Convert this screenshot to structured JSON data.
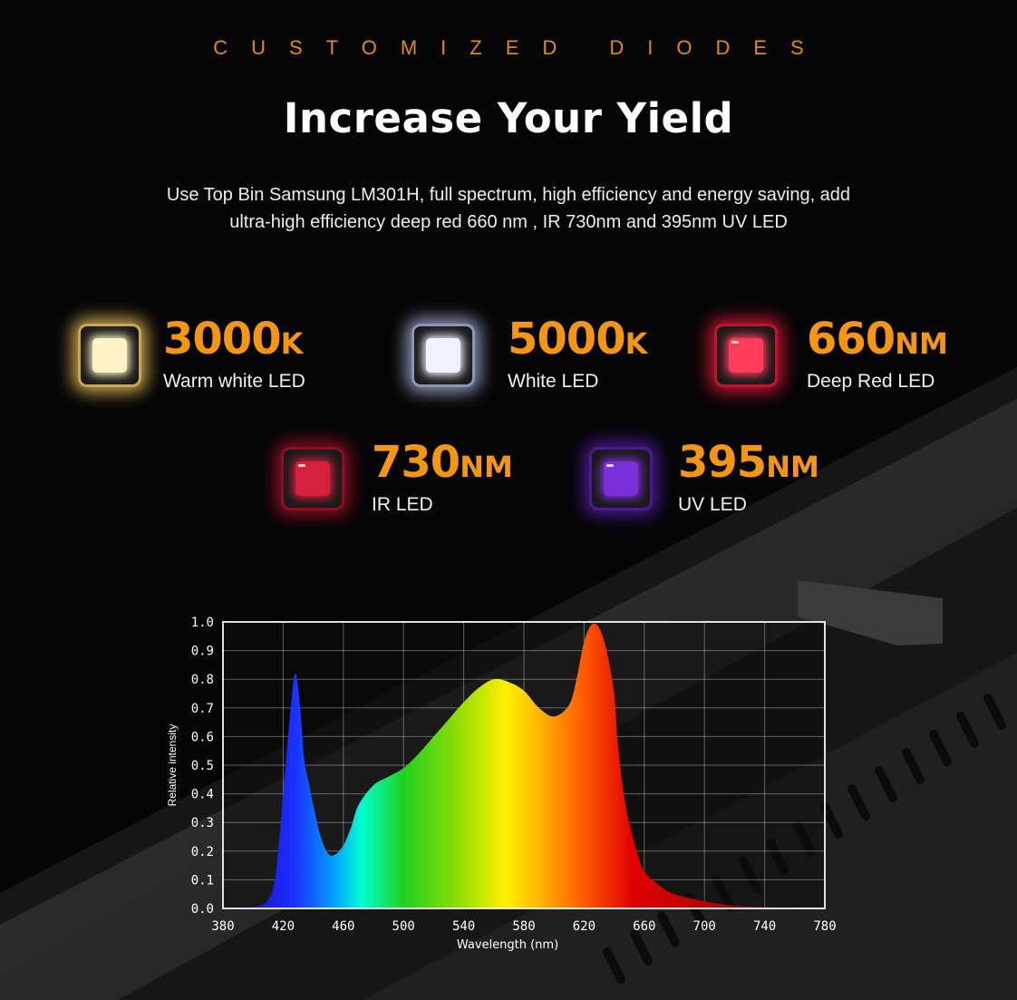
{
  "header": {
    "eyebrow": "CUSTOMIZED DIODES",
    "title": "Increase Your Yield",
    "description_line1": "Use Top Bin Samsung LM301H, full spectrum, high efficiency and energy saving, add",
    "description_line2": "ultra-high efficiency deep red 660 nm , IR 730nm and 395nm UV LED"
  },
  "diodes": [
    {
      "number": "3000",
      "unit": "K",
      "label": "Warm white LED",
      "color": "#fff2c4",
      "glow": "#c9a650"
    },
    {
      "number": "5000",
      "unit": "K",
      "label": "White LED",
      "color": "#eef2ff",
      "glow": "#8c95b8"
    },
    {
      "number": "660",
      "unit": "NM",
      "label": "Deep Red LED",
      "color": "#ff3c5a",
      "glow": "#c0142f"
    },
    {
      "number": "730",
      "unit": "NM",
      "label": "IR LED",
      "color": "#d5203e",
      "glow": "#8a0f24"
    },
    {
      "number": "395",
      "unit": "NM",
      "label": "UV LED",
      "color": "#7b2fd6",
      "glow": "#4a1a90"
    }
  ],
  "colors": {
    "accent": "#f59612",
    "background": "#050505"
  },
  "chart_data": {
    "type": "area",
    "xlabel": "Wavelength (nm)",
    "ylabel": "Relative intensity",
    "xlim": [
      380,
      780
    ],
    "ylim": [
      0,
      1.0
    ],
    "xticks": [
      380,
      420,
      460,
      500,
      540,
      580,
      620,
      660,
      700,
      740,
      780
    ],
    "yticks": [
      0.0,
      0.1,
      0.2,
      0.3,
      0.4,
      0.5,
      0.6,
      0.7,
      0.8,
      0.9,
      1.0
    ],
    "ytick_labels": [
      "0.0",
      "0.1",
      "0.2",
      "0.3",
      "0.4",
      "0.5",
      "0.6",
      "0.7",
      "0.8",
      "0.9",
      "1.0"
    ],
    "grid": true,
    "x": [
      380,
      400,
      410,
      415,
      420,
      425,
      428,
      431,
      434,
      437,
      440,
      445,
      450,
      455,
      460,
      465,
      470,
      480,
      490,
      500,
      510,
      520,
      530,
      540,
      550,
      560,
      570,
      580,
      590,
      600,
      610,
      615,
      620,
      625,
      630,
      635,
      640,
      642,
      645,
      648,
      650,
      655,
      660,
      670,
      680,
      700,
      720,
      740,
      760,
      780
    ],
    "y": [
      0.0,
      0.005,
      0.03,
      0.12,
      0.4,
      0.7,
      0.82,
      0.72,
      0.52,
      0.44,
      0.36,
      0.25,
      0.19,
      0.19,
      0.22,
      0.28,
      0.36,
      0.43,
      0.46,
      0.49,
      0.54,
      0.6,
      0.66,
      0.72,
      0.77,
      0.8,
      0.79,
      0.76,
      0.7,
      0.67,
      0.71,
      0.8,
      0.93,
      0.99,
      0.98,
      0.9,
      0.75,
      0.6,
      0.45,
      0.35,
      0.3,
      0.2,
      0.13,
      0.08,
      0.05,
      0.025,
      0.01,
      0.005,
      0.0,
      0.0
    ]
  }
}
